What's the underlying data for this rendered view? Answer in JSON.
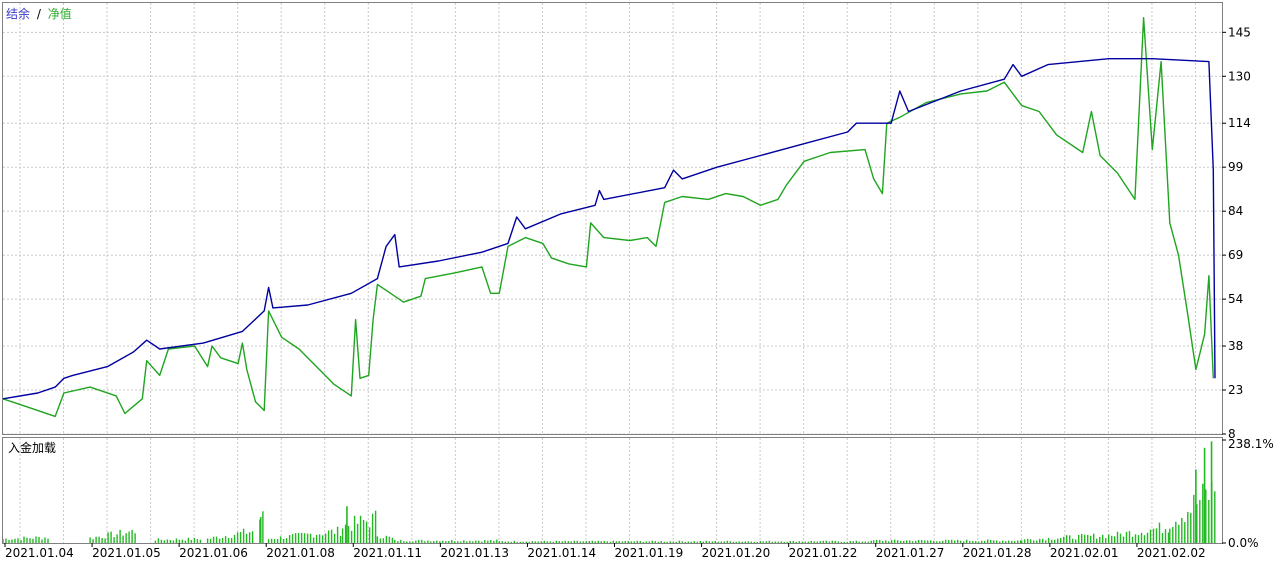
{
  "legend": {
    "balance_label": "结余",
    "separator": "/",
    "equity_label": "净值"
  },
  "load_panel_label": "入金加载",
  "colors": {
    "balance": "#0000a0",
    "equity": "#1fa51f",
    "grid": "#c8c8c8",
    "frame": "#808080",
    "load_bars": "#22b822"
  },
  "chart_data": [
    {
      "type": "line",
      "ylim": [
        8,
        155
      ],
      "yticks": [
        "145",
        "130",
        "114",
        "99",
        "84",
        "69",
        "54",
        "38",
        "23",
        "8"
      ],
      "ytick_values": [
        145,
        130,
        114,
        99,
        84,
        69,
        54,
        38,
        23,
        8
      ],
      "x_categories": [
        "2021.01.04",
        "2021.01.05",
        "2021.01.06",
        "2021.01.08",
        "2021.01.11",
        "2021.01.13",
        "2021.01.14",
        "2021.01.19",
        "2021.01.20",
        "2021.01.22",
        "2021.01.27",
        "2021.01.28",
        "2021.02.01",
        "2021.02.02"
      ],
      "x_range": [
        0,
        14
      ],
      "series": [
        {
          "name": "结余",
          "points": [
            [
              0,
              20
            ],
            [
              0.4,
              22
            ],
            [
              0.6,
              24
            ],
            [
              0.7,
              27
            ],
            [
              0.8,
              28
            ],
            [
              1.2,
              31
            ],
            [
              1.5,
              36
            ],
            [
              1.65,
              40
            ],
            [
              1.8,
              37
            ],
            [
              2.3,
              39
            ],
            [
              2.75,
              43
            ],
            [
              3.0,
              50
            ],
            [
              3.05,
              58
            ],
            [
              3.1,
              51
            ],
            [
              3.5,
              52
            ],
            [
              4.0,
              56
            ],
            [
              4.3,
              61
            ],
            [
              4.4,
              72
            ],
            [
              4.5,
              76
            ],
            [
              4.55,
              65
            ],
            [
              5.0,
              67
            ],
            [
              5.5,
              70
            ],
            [
              5.8,
              73
            ],
            [
              5.9,
              82
            ],
            [
              6.0,
              78
            ],
            [
              6.4,
              83
            ],
            [
              6.8,
              86
            ],
            [
              6.85,
              91
            ],
            [
              6.9,
              88
            ],
            [
              7.6,
              92
            ],
            [
              7.7,
              98
            ],
            [
              7.8,
              95
            ],
            [
              8.2,
              99
            ],
            [
              8.7,
              103
            ],
            [
              9.2,
              107
            ],
            [
              9.7,
              111
            ],
            [
              9.8,
              114
            ],
            [
              10.2,
              114
            ],
            [
              10.3,
              125
            ],
            [
              10.4,
              118
            ],
            [
              11.0,
              125
            ],
            [
              11.5,
              129
            ],
            [
              11.6,
              134
            ],
            [
              11.7,
              130
            ],
            [
              12.0,
              134
            ],
            [
              12.7,
              136
            ],
            [
              13.2,
              136
            ],
            [
              13.85,
              135
            ],
            [
              13.9,
              98
            ],
            [
              13.92,
              27
            ]
          ]
        },
        {
          "name": "净值",
          "points": [
            [
              0,
              20
            ],
            [
              0.3,
              17
            ],
            [
              0.6,
              14
            ],
            [
              0.7,
              22
            ],
            [
              1.0,
              24
            ],
            [
              1.3,
              21
            ],
            [
              1.4,
              15
            ],
            [
              1.6,
              20
            ],
            [
              1.65,
              33
            ],
            [
              1.8,
              28
            ],
            [
              1.9,
              37
            ],
            [
              2.2,
              38
            ],
            [
              2.35,
              31
            ],
            [
              2.4,
              38
            ],
            [
              2.5,
              34
            ],
            [
              2.7,
              32
            ],
            [
              2.75,
              39
            ],
            [
              2.8,
              30
            ],
            [
              2.9,
              19
            ],
            [
              3.0,
              16
            ],
            [
              3.05,
              50
            ],
            [
              3.2,
              41
            ],
            [
              3.4,
              37
            ],
            [
              3.6,
              31
            ],
            [
              3.8,
              25
            ],
            [
              4.0,
              21
            ],
            [
              4.05,
              47
            ],
            [
              4.1,
              27
            ],
            [
              4.2,
              28
            ],
            [
              4.25,
              47
            ],
            [
              4.3,
              59
            ],
            [
              4.4,
              57
            ],
            [
              4.6,
              53
            ],
            [
              4.8,
              55
            ],
            [
              4.85,
              61
            ],
            [
              5.2,
              63
            ],
            [
              5.5,
              65
            ],
            [
              5.6,
              56
            ],
            [
              5.7,
              56
            ],
            [
              5.8,
              72
            ],
            [
              6.0,
              75
            ],
            [
              6.2,
              73
            ],
            [
              6.3,
              68
            ],
            [
              6.5,
              66
            ],
            [
              6.7,
              65
            ],
            [
              6.75,
              80
            ],
            [
              6.9,
              75
            ],
            [
              7.2,
              74
            ],
            [
              7.4,
              75
            ],
            [
              7.5,
              72
            ],
            [
              7.6,
              87
            ],
            [
              7.8,
              89
            ],
            [
              8.1,
              88
            ],
            [
              8.3,
              90
            ],
            [
              8.5,
              89
            ],
            [
              8.7,
              86
            ],
            [
              8.9,
              88
            ],
            [
              9.0,
              93
            ],
            [
              9.2,
              101
            ],
            [
              9.5,
              104
            ],
            [
              9.9,
              105
            ],
            [
              10.0,
              95
            ],
            [
              10.1,
              90
            ],
            [
              10.15,
              114
            ],
            [
              10.3,
              116
            ],
            [
              10.6,
              121
            ],
            [
              11.0,
              124
            ],
            [
              11.3,
              125
            ],
            [
              11.5,
              128
            ],
            [
              11.7,
              120
            ],
            [
              11.9,
              118
            ],
            [
              12.1,
              110
            ],
            [
              12.4,
              104
            ],
            [
              12.5,
              118
            ],
            [
              12.6,
              103
            ],
            [
              12.8,
              97
            ],
            [
              13.0,
              88
            ],
            [
              13.1,
              150
            ],
            [
              13.2,
              105
            ],
            [
              13.3,
              135
            ],
            [
              13.4,
              80
            ],
            [
              13.5,
              69
            ],
            [
              13.6,
              50
            ],
            [
              13.7,
              30
            ],
            [
              13.8,
              42
            ],
            [
              13.85,
              62
            ],
            [
              13.9,
              27
            ]
          ]
        }
      ]
    },
    {
      "type": "bar",
      "ylim": [
        0,
        238.1
      ],
      "yticks": [
        "238.1%",
        "0.0%"
      ],
      "ytick_values": [
        238.1,
        0
      ],
      "segments": [
        {
          "x0": 0.0,
          "x1": 0.55,
          "start": 10,
          "end": 14
        },
        {
          "x0": 1.0,
          "x1": 1.55,
          "start": 12,
          "end": 30
        },
        {
          "x0": 1.75,
          "x1": 2.3,
          "start": 8,
          "end": 10
        },
        {
          "x0": 2.35,
          "x1": 2.9,
          "start": 10,
          "end": 30
        },
        {
          "x0": 2.95,
          "x1": 3.0,
          "start": 60,
          "end": 60
        },
        {
          "x0": 3.05,
          "x1": 3.9,
          "start": 10,
          "end": 30
        },
        {
          "x0": 3.9,
          "x1": 4.3,
          "start": 40,
          "end": 60
        },
        {
          "x0": 4.3,
          "x1": 4.5,
          "start": 20,
          "end": 10
        },
        {
          "x0": 4.5,
          "x1": 5.7,
          "start": 6,
          "end": 6
        },
        {
          "x0": 5.7,
          "x1": 10.0,
          "start": 4,
          "end": 4
        },
        {
          "x0": 10.0,
          "x1": 11.7,
          "start": 6,
          "end": 6
        },
        {
          "x0": 11.7,
          "x1": 12.8,
          "start": 8,
          "end": 20
        },
        {
          "x0": 12.8,
          "x1": 13.4,
          "start": 20,
          "end": 40
        },
        {
          "x0": 13.4,
          "x1": 13.92,
          "start": 50,
          "end": 130
        }
      ],
      "spikes": [
        [
          2.96,
          60
        ],
        [
          3.95,
          85
        ],
        [
          13.7,
          170
        ],
        [
          13.8,
          220
        ],
        [
          13.88,
          235
        ]
      ]
    }
  ]
}
